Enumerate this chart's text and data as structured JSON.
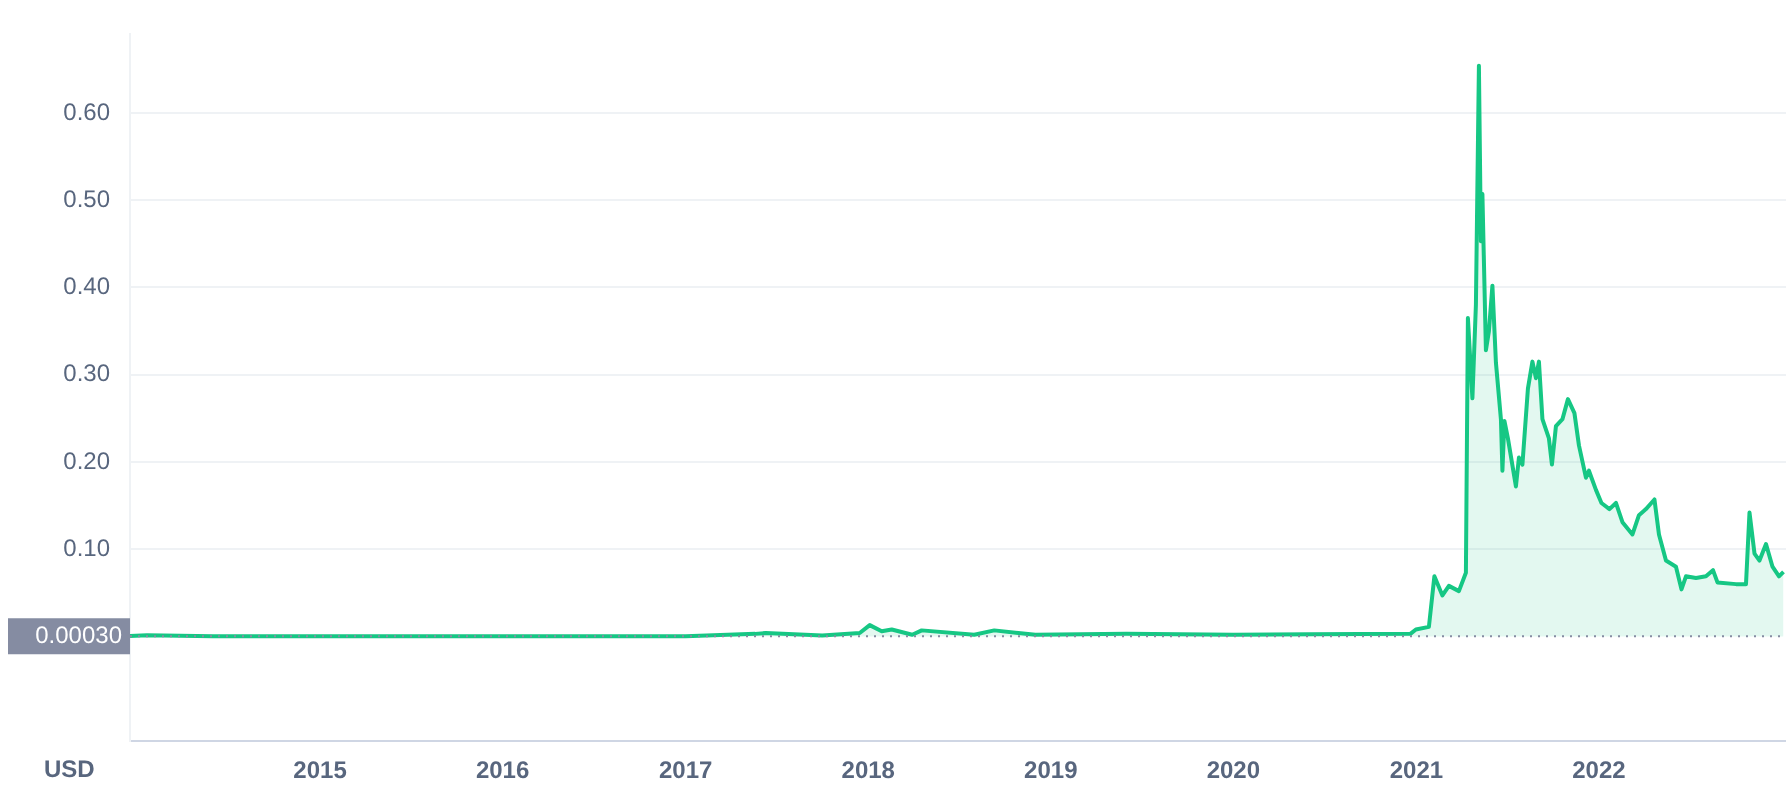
{
  "chart_data": {
    "type": "area",
    "ylabel": "USD",
    "x": [
      "2013-12-17",
      "2014-01-20",
      "2014-06-01",
      "2015-01-01",
      "2016-01-01",
      "2017-01-01",
      "2017-05-20",
      "2017-06-10",
      "2017-10-01",
      "2017-12-15",
      "2018-01-04",
      "2018-01-28",
      "2018-02-17",
      "2018-03-30",
      "2018-04-18",
      "2018-08-01",
      "2018-09-10",
      "2018-12-01",
      "2019-06-01",
      "2020-01-01",
      "2020-06-01",
      "2020-12-20",
      "2020-12-31",
      "2021-01-26",
      "2021-02-06",
      "2021-02-22",
      "2021-03-07",
      "2021-03-27",
      "2021-04-10",
      "2021-04-14",
      "2021-04-23",
      "2021-04-30",
      "2021-05-06",
      "2021-05-10",
      "2021-05-13",
      "2021-05-20",
      "2021-05-26",
      "2021-06-02",
      "2021-06-09",
      "2021-06-19",
      "2021-06-22",
      "2021-06-26",
      "2021-07-03",
      "2021-07-19",
      "2021-07-25",
      "2021-08-01",
      "2021-08-12",
      "2021-08-21",
      "2021-08-28",
      "2021-09-03",
      "2021-09-10",
      "2021-09-23",
      "2021-09-29",
      "2021-10-07",
      "2021-10-20",
      "2021-10-31",
      "2021-11-13",
      "2021-11-22",
      "2021-12-06",
      "2021-12-12",
      "2021-12-26",
      "2022-01-06",
      "2022-01-22",
      "2022-02-04",
      "2022-02-17",
      "2022-03-09",
      "2022-03-22",
      "2022-04-05",
      "2022-04-22",
      "2022-05-01",
      "2022-05-15",
      "2022-06-04",
      "2022-06-15",
      "2022-06-24",
      "2022-07-14",
      "2022-08-03",
      "2022-08-17",
      "2022-08-26",
      "2022-10-02",
      "2022-10-22",
      "2022-10-29",
      "2022-11-08",
      "2022-11-18",
      "2022-12-01",
      "2022-12-14",
      "2022-12-27",
      "2023-01-05"
    ],
    "series": [
      {
        "color": "#16c784",
        "values": [
          0.0005,
          0.0015,
          0.0004,
          0.0002,
          0.0002,
          0.0003,
          0.003,
          0.004,
          0.001,
          0.004,
          0.013,
          0.006,
          0.008,
          0.002,
          0.007,
          0.002,
          0.007,
          0.002,
          0.003,
          0.002,
          0.0025,
          0.003,
          0.008,
          0.011,
          0.069,
          0.047,
          0.058,
          0.052,
          0.073,
          0.365,
          0.273,
          0.38,
          0.654,
          0.453,
          0.507,
          0.328,
          0.35,
          0.402,
          0.314,
          0.249,
          0.19,
          0.247,
          0.227,
          0.172,
          0.205,
          0.197,
          0.284,
          0.315,
          0.296,
          0.315,
          0.249,
          0.227,
          0.197,
          0.241,
          0.249,
          0.272,
          0.256,
          0.219,
          0.182,
          0.19,
          0.168,
          0.153,
          0.146,
          0.153,
          0.131,
          0.117,
          0.139,
          0.146,
          0.157,
          0.117,
          0.087,
          0.08,
          0.054,
          0.069,
          0.067,
          0.069,
          0.076,
          0.062,
          0.06,
          0.06,
          0.142,
          0.095,
          0.087,
          0.106,
          0.08,
          0.069,
          0.074
        ]
      }
    ],
    "xlim": [
      "2013-12-17",
      "2023-01-10"
    ],
    "xticks": [
      {
        "value": "2015",
        "label": "2015"
      },
      {
        "value": "2016",
        "label": "2016"
      },
      {
        "value": "2017",
        "label": "2017"
      },
      {
        "value": "2018",
        "label": "2018"
      },
      {
        "value": "2019",
        "label": "2019"
      },
      {
        "value": "2020",
        "label": "2020"
      },
      {
        "value": "2021",
        "label": "2021"
      },
      {
        "value": "2022",
        "label": "2022"
      }
    ],
    "ylim": [
      -0.12,
      0.69
    ],
    "yticks": [
      {
        "value": 0.1,
        "label": "0.10"
      },
      {
        "value": 0.2,
        "label": "0.20"
      },
      {
        "value": 0.3,
        "label": "0.30"
      },
      {
        "value": 0.4,
        "label": "0.40"
      },
      {
        "value": 0.5,
        "label": "0.50"
      },
      {
        "value": 0.6,
        "label": "0.60"
      }
    ],
    "ref_lines": [
      {
        "axis": "y",
        "value": 0.0003,
        "label": "0.00030",
        "line_style": "dotted",
        "color": "#858ca2"
      }
    ],
    "grid": "y",
    "legend": false
  }
}
